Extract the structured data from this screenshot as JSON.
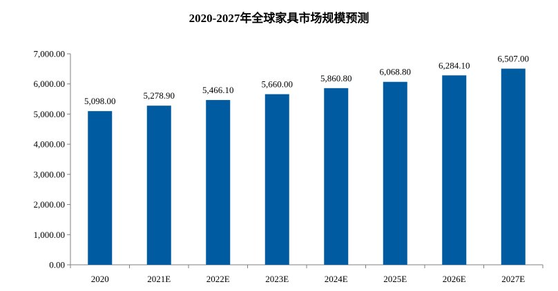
{
  "chart_data": {
    "type": "bar",
    "title": "2020-2027年全球家具市场规模预测",
    "xlabel": "",
    "ylabel": "",
    "categories": [
      "2020",
      "2021E",
      "2022E",
      "2023E",
      "2024E",
      "2025E",
      "2026E",
      "2027E"
    ],
    "values": [
      5098.0,
      5278.9,
      5466.1,
      5660.0,
      5860.8,
      6068.8,
      6284.1,
      6507.0
    ],
    "value_labels": [
      "5,098.00",
      "5,278.90",
      "5,466.10",
      "5,660.00",
      "5,860.80",
      "6,068.80",
      "6,284.10",
      "6,507.00"
    ],
    "ylim": [
      0,
      7000
    ],
    "yticks": [
      0,
      1000,
      2000,
      3000,
      4000,
      5000,
      6000,
      7000
    ],
    "ytick_labels": [
      "0.00",
      "1,000.00",
      "2,000.00",
      "3,000.00",
      "4,000.00",
      "5,000.00",
      "6,000.00",
      "7,000.00"
    ],
    "grid": false,
    "legend": "none",
    "bar_color": "#005BA1"
  }
}
